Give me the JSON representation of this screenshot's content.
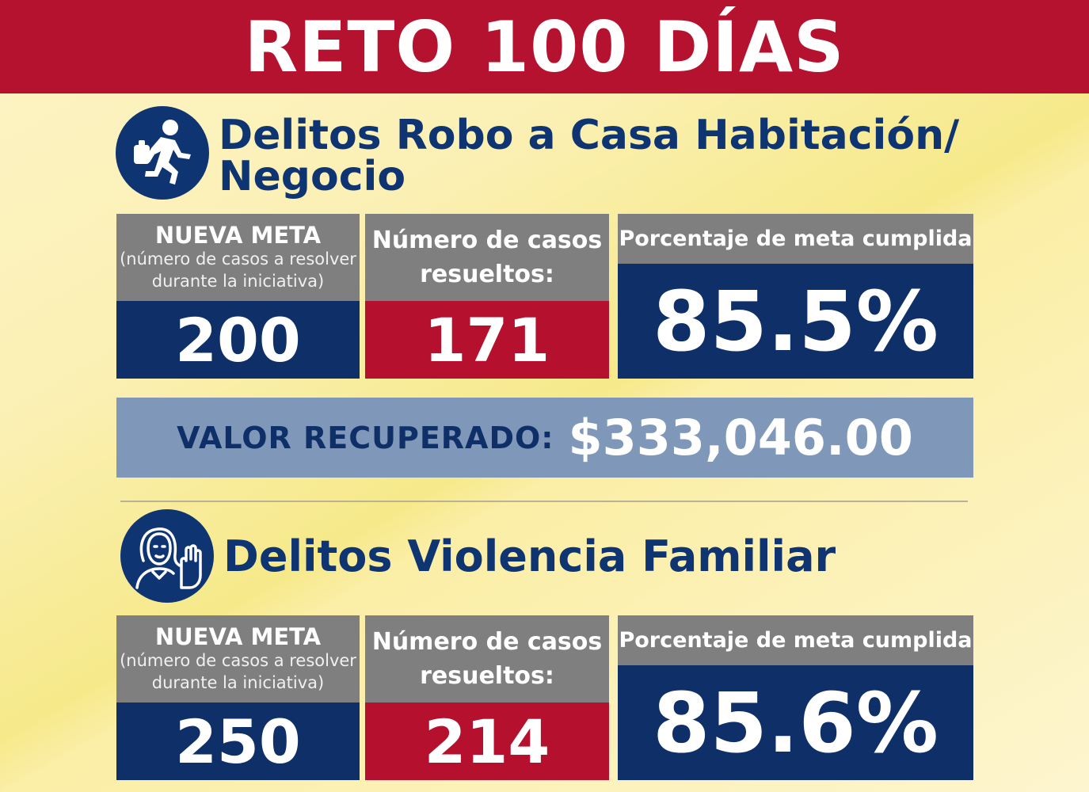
{
  "banner": {
    "title": "RETO 100 DÍAS"
  },
  "sections": [
    {
      "icon": "running-thief-icon",
      "title_line1": "Delitos Robo a Casa Habitación/",
      "title_line2": "Negocio",
      "meta_label": "NUEVA META",
      "meta_sub1": "(número de casos a resolver",
      "meta_sub2": "durante la iniciativa)",
      "meta_value": "200",
      "casos_label1": "Número de casos",
      "casos_label2": "resueltos:",
      "casos_value": "171",
      "pct_label": "Porcentaje de meta cumplida",
      "pct_value": "85.5%"
    },
    {
      "icon": "woman-stop-hand-icon",
      "title_line1": "Delitos Violencia Familiar",
      "meta_label": "NUEVA META",
      "meta_sub1": "(número de casos a resolver",
      "meta_sub2": "durante la iniciativa)",
      "meta_value": "250",
      "casos_label1": "Número de casos",
      "casos_label2": "resueltos:",
      "casos_value": "214",
      "pct_label": "Porcentaje de meta cumplida",
      "pct_value": "85.6%"
    }
  ],
  "valor": {
    "label": "VALOR RECUPERADO:",
    "amount": "$333,046.00"
  },
  "colors": {
    "red": "#b5122f",
    "navy": "#0f2f68",
    "gray": "#7f7f7f",
    "steel": "#7f97b8"
  }
}
